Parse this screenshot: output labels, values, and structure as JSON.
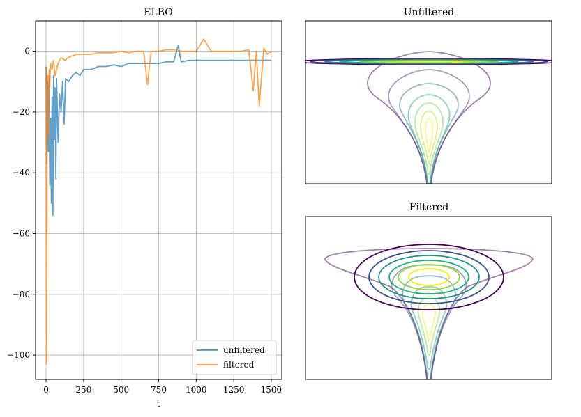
{
  "chart_data": [
    {
      "type": "line",
      "title": "ELBO",
      "xlabel": "t",
      "ylabel": "",
      "xlim": [
        -70,
        1570
      ],
      "ylim": [
        -108,
        10
      ],
      "grid": true,
      "xticks": [
        0,
        250,
        500,
        750,
        1000,
        1250,
        1500
      ],
      "yticks": [
        0,
        -20,
        -40,
        -60,
        -80,
        -100
      ],
      "xtick_labels": [
        "0",
        "250",
        "500",
        "750",
        "1000",
        "1250",
        "1500"
      ],
      "ytick_labels": [
        "0",
        "−20",
        "−40",
        "−60",
        "−80",
        "−100"
      ],
      "legend_position": "lower-right",
      "series": [
        {
          "name": "unfiltered",
          "color": "#1f77b4",
          "x": [
            0,
            5,
            10,
            15,
            20,
            25,
            30,
            35,
            40,
            45,
            50,
            55,
            60,
            65,
            70,
            80,
            90,
            100,
            110,
            120,
            130,
            150,
            175,
            200,
            225,
            250,
            300,
            350,
            400,
            450,
            500,
            550,
            600,
            650,
            700,
            750,
            800,
            850,
            880,
            900,
            950,
            1000,
            1050,
            1100,
            1150,
            1200,
            1250,
            1300,
            1350,
            1400,
            1450,
            1500
          ],
          "values": [
            -5,
            -37,
            -10,
            -33,
            -8,
            -44,
            -22,
            -50,
            -15,
            -54,
            -8,
            -29,
            -12,
            -42,
            -9,
            -30,
            -14,
            -20,
            -10,
            -24,
            -9,
            -10,
            -8,
            -7,
            -8,
            -6,
            -6,
            -5,
            -5,
            -4.5,
            -5,
            -4,
            -4,
            -4,
            -4,
            -4,
            -3.5,
            -3.5,
            2,
            -3.5,
            -3,
            -3,
            -3,
            -3,
            -3,
            -3,
            -3,
            -3,
            -3,
            -3,
            -3,
            -3
          ]
        },
        {
          "name": "filtered",
          "color": "#ff7f0e",
          "x": [
            0,
            2,
            4,
            6,
            8,
            10,
            15,
            20,
            25,
            30,
            40,
            50,
            60,
            80,
            100,
            125,
            150,
            175,
            200,
            250,
            300,
            350,
            400,
            450,
            500,
            550,
            600,
            650,
            675,
            700,
            750,
            800,
            850,
            900,
            950,
            1000,
            1050,
            1100,
            1150,
            1200,
            1250,
            1300,
            1350,
            1380,
            1400,
            1420,
            1450,
            1475,
            1500
          ],
          "values": [
            -5,
            -103,
            -92,
            -40,
            -20,
            -8,
            -28,
            -6,
            -12,
            -4,
            -6,
            -3,
            -8,
            -4,
            -2,
            -3,
            -2,
            -1.5,
            -1,
            -1,
            -1,
            -0.5,
            -0.5,
            -0.5,
            0,
            -0.5,
            0,
            0,
            -11,
            0,
            0,
            0.5,
            0.5,
            0,
            0,
            0,
            4,
            0,
            0,
            0,
            0,
            0,
            0.5,
            -13,
            0,
            -18,
            1,
            -1,
            0
          ]
        }
      ]
    },
    {
      "type": "contour",
      "title": "Unfiltered",
      "description_levels": 8,
      "grid": false
    },
    {
      "type": "contour",
      "title": "Filtered",
      "description_levels": 8,
      "grid": false
    }
  ]
}
